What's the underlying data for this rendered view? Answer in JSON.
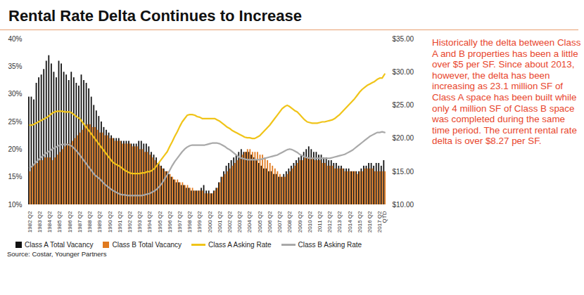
{
  "chart_data": {
    "type": "bar",
    "title": "Rental Rate Delta Continues to Increase",
    "annotations": [
      "Historically the delta between Class A and B properties has been a little over $5 per SF. Since about 2013, however, the delta has been increasing as 23.1 million SF of Class A space has been built while only 4 million SF of Class B space was completed during the same time period.  The current rental rate delta is over $8.27 per SF."
    ],
    "source": "Source: Costar, Younger Partners",
    "legend": "bottom",
    "grid": false,
    "data_labels": false,
    "categories": [
      "1982 Q2",
      null,
      null,
      null,
      "1983 Q2",
      null,
      null,
      null,
      "1984 Q2",
      null,
      null,
      null,
      "1985 Q2",
      null,
      null,
      null,
      "1986 Q2",
      null,
      null,
      null,
      "1987 Q2",
      null,
      null,
      null,
      "1988 Q2",
      null,
      null,
      null,
      "1989 Q2",
      null,
      null,
      null,
      "1990 Q2",
      null,
      null,
      null,
      "1991 Q2",
      null,
      null,
      null,
      "1992 Q2",
      null,
      null,
      null,
      "1993 Q2",
      null,
      null,
      null,
      "1994 Q2",
      null,
      null,
      null,
      "1995 Q2",
      null,
      null,
      null,
      "1996 Q2",
      null,
      null,
      null,
      "1997 Q2",
      null,
      null,
      null,
      "1998 Q2",
      null,
      null,
      null,
      "1999 Q2",
      null,
      null,
      null,
      "2000 Q2",
      null,
      null,
      null,
      "2001 Q2",
      null,
      null,
      null,
      "2002 Q2",
      null,
      null,
      null,
      "2003 Q2",
      null,
      null,
      null,
      "2004 Q2",
      null,
      null,
      null,
      "2005 Q2",
      null,
      null,
      null,
      "2006 Q2",
      null,
      null,
      null,
      "2007 Q2",
      null,
      null,
      null,
      "2008 Q2",
      null,
      null,
      null,
      "2009 Q2",
      null,
      null,
      null,
      "2010 Q2",
      null,
      null,
      null,
      "2011 Q2",
      null,
      null,
      null,
      "2012 Q2",
      null,
      null,
      null,
      "2013 Q2",
      null,
      null,
      null,
      "2014 Q2",
      null,
      null,
      null,
      "2015 Q2",
      null,
      null,
      null,
      "2016 Q2",
      null,
      null,
      null,
      "2017 Q2",
      null,
      "QTD"
    ],
    "ylim": [
      10,
      40
    ],
    "yticks": [
      {
        "value": 10,
        "label": "10%"
      },
      {
        "value": 15,
        "label": "15%"
      },
      {
        "value": 20,
        "label": "20%"
      },
      {
        "value": 25,
        "label": "25%"
      },
      {
        "value": 30,
        "label": "30%"
      },
      {
        "value": 35,
        "label": "35%"
      },
      {
        "value": 40,
        "label": "40%"
      }
    ],
    "y2lim": [
      10,
      35
    ],
    "y2ticks": [
      {
        "value": 10,
        "label": "$10.00"
      },
      {
        "value": 15,
        "label": "$15.00"
      },
      {
        "value": 20,
        "label": "$20.00"
      },
      {
        "value": 25,
        "label": "$25.00"
      },
      {
        "value": 30,
        "label": "$30.00"
      },
      {
        "value": 35,
        "label": "$35.00"
      }
    ],
    "series": [
      {
        "name": "Class A Total Vacancy",
        "type": "bar",
        "color": "#111111",
        "values": [
          29.5,
          29.5,
          29,
          32,
          33,
          33.5,
          34.5,
          36,
          37,
          35.5,
          34,
          33,
          36,
          35.5,
          34,
          33.5,
          32.5,
          34,
          33,
          32,
          31.5,
          33.5,
          32.5,
          32,
          31,
          29.5,
          28,
          27,
          26,
          25,
          24,
          23.5,
          23,
          22.5,
          22,
          22,
          22,
          21.5,
          21.5,
          21.5,
          21.5,
          21,
          21,
          21,
          21.5,
          21.5,
          21,
          21,
          20.5,
          19.5,
          19,
          18.5,
          17.5,
          17,
          16.5,
          16,
          15.5,
          15,
          14.5,
          14,
          14,
          13.5,
          13.5,
          13,
          13,
          12.5,
          12.5,
          12.5,
          12.5,
          13,
          13.5,
          12.5,
          12.5,
          12,
          12.5,
          13,
          14,
          15,
          16,
          17,
          17.5,
          18,
          18.5,
          19,
          19.5,
          20,
          19.5,
          19.5,
          19.5,
          19,
          18.5,
          18,
          17.5,
          17,
          16.5,
          16.5,
          16,
          16,
          15.5,
          15.5,
          15,
          15,
          15.5,
          16,
          16.5,
          17,
          17.5,
          18,
          18.5,
          19,
          19.5,
          20,
          20.5,
          20,
          19.5,
          19.5,
          19,
          19,
          18.5,
          18.5,
          18,
          18,
          17.5,
          17.5,
          17,
          17,
          16.5,
          16.5,
          16.5,
          16,
          16,
          16,
          16,
          16.5,
          17,
          17,
          17.5,
          17.5,
          17,
          17.5,
          17.5,
          17,
          18
        ]
      },
      {
        "name": "Class B Total Vacancy",
        "type": "bar",
        "color": "#e07a1f",
        "values": [
          16,
          17,
          17.5,
          17.5,
          18,
          18,
          18.5,
          18.5,
          18.5,
          18,
          18.5,
          19,
          19.5,
          20,
          20.5,
          21,
          21,
          21.5,
          22,
          22.5,
          23,
          23.5,
          24,
          24.5,
          24.5,
          24,
          24,
          23.5,
          23,
          23,
          22.5,
          22.5,
          22,
          22,
          21.5,
          21.5,
          21.5,
          21,
          21,
          21,
          21,
          20.5,
          20.5,
          20.5,
          20,
          20,
          19.5,
          19.5,
          19,
          18.5,
          18,
          17.5,
          17,
          16.5,
          16,
          16,
          15.5,
          15,
          14.5,
          14.5,
          14,
          14,
          13.5,
          13.5,
          13,
          13,
          12.5,
          12.5,
          12.5,
          12.5,
          12,
          12,
          12,
          12,
          12.5,
          13,
          14,
          15,
          15.5,
          16,
          16.5,
          17,
          17.5,
          18,
          18.5,
          19,
          19.5,
          20,
          20,
          19.5,
          19.5,
          19.5,
          19,
          19,
          18.5,
          18,
          17.5,
          17,
          16.5,
          16,
          15.5,
          15,
          15,
          15.5,
          16,
          16.5,
          17,
          17.5,
          18,
          18,
          18.5,
          18.5,
          18.5,
          18.5,
          18,
          18,
          18,
          17.5,
          17.5,
          17,
          17,
          17,
          16.5,
          16.5,
          16.5,
          16.5,
          16,
          16,
          16,
          16,
          16,
          15.5,
          16,
          16,
          16.5,
          16.5,
          16.5,
          16.5,
          16,
          16,
          16,
          16,
          16
        ]
      },
      {
        "name": "Class A Asking Rate",
        "type": "line",
        "axis": "y2",
        "color": "#f0c419",
        "values": [
          22,
          22,
          22.2,
          22.4,
          22.6,
          22.8,
          23,
          23.2,
          23.5,
          23.8,
          24,
          24.1,
          24.1,
          24.1,
          24,
          24,
          24,
          23.8,
          23.5,
          23.2,
          23,
          22.5,
          22,
          21.5,
          21,
          20.5,
          20,
          19.5,
          19,
          18.5,
          18,
          17.5,
          17,
          16.5,
          16.2,
          16,
          15.8,
          15.5,
          15.2,
          15,
          14.8,
          14.7,
          14.7,
          14.7,
          14.7,
          14.8,
          14.8,
          15,
          15,
          15.2,
          15.5,
          16,
          16.5,
          17,
          17.5,
          18,
          18.8,
          19.5,
          20.3,
          21,
          21.8,
          22.5,
          23,
          23.5,
          23.6,
          23.6,
          23.5,
          23.3,
          23.2,
          23,
          23,
          23,
          23,
          23,
          23,
          22.8,
          22.6,
          22.3,
          22,
          21.7,
          21.5,
          21.2,
          21,
          20.8,
          20.6,
          20.4,
          20.2,
          20.1,
          20.1,
          20,
          20,
          20.2,
          20.4,
          20.8,
          21.2,
          21.6,
          22,
          22.5,
          23,
          23.5,
          24,
          24.5,
          24.8,
          25,
          24.8,
          24.5,
          24.2,
          24,
          23.6,
          23.2,
          22.8,
          22.5,
          22.4,
          22.3,
          22.3,
          22.3,
          22.4,
          22.5,
          22.5,
          22.6,
          22.7,
          22.8,
          23,
          23.3,
          23.6,
          24,
          24.4,
          24.8,
          25.2,
          25.6,
          26,
          26.5,
          27,
          27.4,
          27.7,
          28,
          28.2,
          28.4,
          28.6,
          28.9,
          29.1,
          29.1,
          29.7
        ]
      },
      {
        "name": "Class B Asking Rate",
        "type": "line",
        "axis": "y2",
        "color": "#a9a9a9",
        "values": [
          15.6,
          15.8,
          16.2,
          16.6,
          17,
          17.3,
          17.6,
          17.9,
          18.1,
          18.4,
          18.6,
          18.8,
          19,
          19.1,
          19.1,
          19.1,
          19,
          18.8,
          18.4,
          18,
          17.5,
          17,
          16.5,
          16,
          15.5,
          15,
          14.5,
          14.2,
          13.9,
          13.5,
          13.1,
          12.8,
          12.5,
          12.2,
          12,
          11.8,
          11.6,
          11.5,
          11.5,
          11.4,
          11.4,
          11.4,
          11.4,
          11.4,
          11.4,
          11.4,
          11.5,
          11.6,
          11.7,
          11.9,
          12.1,
          12.4,
          12.8,
          13.3,
          13.9,
          14.5,
          15.2,
          15.9,
          16.5,
          17,
          17.5,
          18,
          18.4,
          18.7,
          18.9,
          19,
          19,
          19,
          19,
          19,
          19,
          19.1,
          19.2,
          19.3,
          19.3,
          19.3,
          19.2,
          19,
          18.8,
          18.5,
          18.3,
          18,
          17.7,
          17.4,
          17.1,
          17,
          16.9,
          16.8,
          16.8,
          16.8,
          16.8,
          16.8,
          16.8,
          16.9,
          17,
          17.1,
          17.2,
          17.3,
          17.4,
          17.5,
          17.7,
          17.9,
          18.1,
          18.3,
          18.4,
          18.3,
          18.1,
          17.9,
          17.6,
          17.4,
          17.2,
          17.1,
          17,
          17,
          17,
          17,
          17,
          17,
          17,
          17,
          17,
          17.1,
          17.2,
          17.3,
          17.4,
          17.5,
          17.6,
          17.8,
          18,
          18.2,
          18.5,
          18.8,
          19.1,
          19.4,
          19.7,
          20,
          20.3,
          20.5,
          20.7,
          20.9,
          20.9,
          21,
          20.9
        ]
      }
    ]
  }
}
